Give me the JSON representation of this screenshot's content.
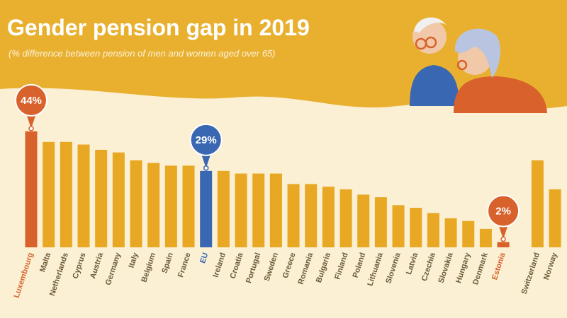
{
  "chart_data": {
    "type": "bar",
    "title": "Gender pension gap in 2019",
    "subtitle": "(% difference between pension of men and women aged over 65)",
    "categories": [
      "Luxembourg",
      "Malta",
      "Netherlands",
      "Cyprus",
      "Austria",
      "Germany",
      "Italy",
      "Belgium",
      "Spain",
      "France",
      "EU",
      "Ireland",
      "Croatia",
      "Portugal",
      "Sweden",
      "Greece",
      "Romania",
      "Bulgaria",
      "Finland",
      "Poland",
      "Lithuania",
      "Slovenia",
      "Latvia",
      "Czechia",
      "Slovakia",
      "Hungary",
      "Denmark",
      "Estonia",
      "Switzerland",
      "Norway"
    ],
    "values": [
      44,
      40,
      40,
      39,
      37,
      36,
      33,
      32,
      31,
      31,
      29,
      29,
      28,
      28,
      28,
      24,
      24,
      23,
      22,
      20,
      19,
      16,
      15,
      13,
      11,
      10,
      7,
      2,
      33,
      22
    ],
    "value_labels": [
      "44%",
      null,
      null,
      null,
      null,
      null,
      null,
      null,
      null,
      null,
      "29%",
      null,
      null,
      null,
      null,
      null,
      null,
      null,
      null,
      null,
      null,
      null,
      null,
      null,
      null,
      null,
      null,
      "2%",
      null,
      null
    ],
    "color": "#e8a823",
    "bar_colors": [
      "#d8612c",
      "#e8a823",
      "#e8a823",
      "#e8a823",
      "#e8a823",
      "#e8a823",
      "#e8a823",
      "#e8a823",
      "#e8a823",
      "#e8a823",
      "#3a67b1",
      "#e8a823",
      "#e8a823",
      "#e8a823",
      "#e8a823",
      "#e8a823",
      "#e8a823",
      "#e8a823",
      "#e8a823",
      "#e8a823",
      "#e8a823",
      "#e8a823",
      "#e8a823",
      "#e8a823",
      "#e8a823",
      "#e8a823",
      "#e8a823",
      "#d8612c",
      "#e8a823",
      "#e8a823"
    ],
    "ylim": [
      0,
      50
    ]
  }
}
